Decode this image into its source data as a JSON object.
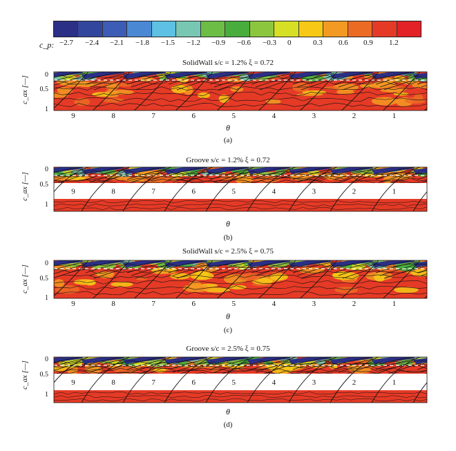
{
  "colorbar": {
    "label": "c_p:",
    "ticks": [
      "−2.7",
      "−2.4",
      "−2.1",
      "−1.8",
      "−1.5",
      "−1.2",
      "−0.9",
      "−0.6",
      "−0.3",
      "0",
      "0.3",
      "0.6",
      "0.9",
      "1.2"
    ],
    "colors": [
      "#2b2f86",
      "#33469d",
      "#3d5cb5",
      "#4b88d4",
      "#5ec0e3",
      "#78c7b3",
      "#6cbd46",
      "#48ad3c",
      "#8cc63f",
      "#d6df24",
      "#f7c916",
      "#f39a22",
      "#ec6b24",
      "#e53a26",
      "#e22226"
    ]
  },
  "y_axis": {
    "label": "c_ax [—]",
    "ticks": [
      "0",
      "0.5",
      "1"
    ]
  },
  "x_axis": {
    "label": "θ"
  },
  "blade_numbers": [
    "9",
    "8",
    "7",
    "6",
    "5",
    "4",
    "3",
    "2",
    "1"
  ],
  "panels": [
    {
      "title": "SolidWall s/c = 1.2% ξ = 0.72",
      "label": "(a)",
      "variant": "solid"
    },
    {
      "title": "Groove s/c = 1.2% ξ = 0.72",
      "label": "(b)",
      "variant": "groove"
    },
    {
      "title": "SolidWall s/c = 2.5% ξ = 0.75",
      "label": "(c)",
      "variant": "solid"
    },
    {
      "title": "Groove s/c = 2.5% ξ = 0.75",
      "label": "(d)",
      "variant": "groove"
    }
  ]
}
